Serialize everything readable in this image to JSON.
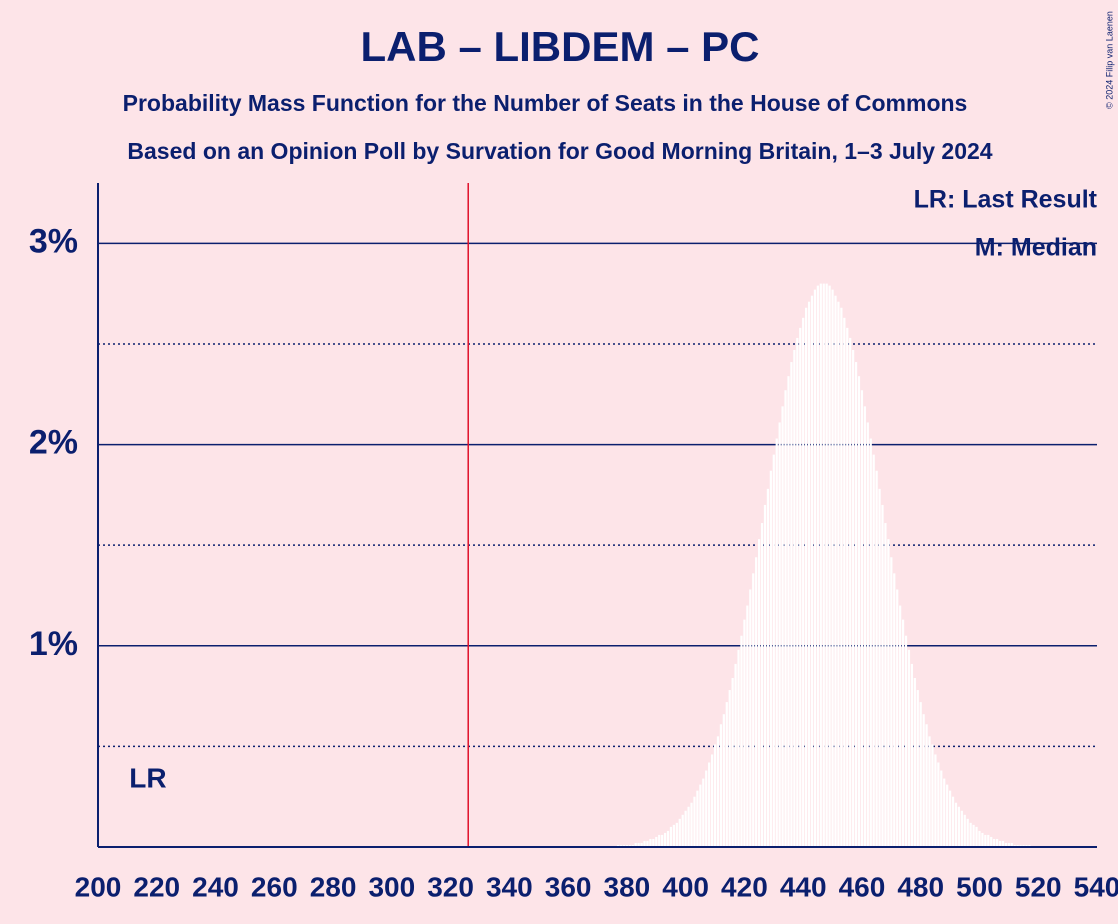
{
  "chart_data": {
    "type": "bar",
    "title": "LAB – LIBDEM – PC",
    "subtitle": "Probability Mass Function for the Number of Seats in the House of Commons",
    "subtitle2": "Based on an Opinion Poll by Survation for Good Morning Britain, 1–3 July 2024",
    "copyright": "© 2024 Filip van Laenen",
    "legend": [
      "LR: Last Result",
      "M: Median"
    ],
    "last_result": {
      "label": "LR",
      "value": 217
    },
    "majority_line": 326,
    "color": "#ffffff",
    "xlim": [
      200,
      540
    ],
    "xticks": [
      200,
      220,
      240,
      260,
      280,
      300,
      320,
      340,
      360,
      380,
      400,
      420,
      440,
      460,
      480,
      500,
      520,
      540
    ],
    "ylim": [
      0,
      3.3
    ],
    "yticks": [
      {
        "value": 1,
        "label": "1%"
      },
      {
        "value": 2,
        "label": "2%"
      },
      {
        "value": 3,
        "label": "3%"
      }
    ],
    "minor_grid": [
      0.5,
      1.5,
      2.5
    ],
    "grid": true,
    "x": [
      377,
      378,
      379,
      380,
      381,
      382,
      383,
      384,
      385,
      386,
      387,
      388,
      389,
      390,
      391,
      392,
      393,
      394,
      395,
      396,
      397,
      398,
      399,
      400,
      401,
      402,
      403,
      404,
      405,
      406,
      407,
      408,
      409,
      410,
      411,
      412,
      413,
      414,
      415,
      416,
      417,
      418,
      419,
      420,
      421,
      422,
      423,
      424,
      425,
      426,
      427,
      428,
      429,
      430,
      431,
      432,
      433,
      434,
      435,
      436,
      437,
      438,
      439,
      440,
      441,
      442,
      443,
      444,
      445,
      446,
      447,
      448,
      449,
      450,
      451,
      452,
      453,
      454,
      455,
      456,
      457,
      458,
      459,
      460,
      461,
      462,
      463,
      464,
      465,
      466,
      467,
      468,
      469,
      470,
      471,
      472,
      473,
      474,
      475,
      476,
      477,
      478,
      479,
      480,
      481,
      482,
      483,
      484,
      485,
      486,
      487,
      488,
      489,
      490,
      491,
      492,
      493,
      494,
      495,
      496,
      497,
      498,
      499,
      500,
      501,
      502,
      503,
      504,
      505,
      506,
      507,
      508,
      509,
      510,
      511,
      512,
      513,
      514,
      515,
      516,
      517
    ],
    "values": [
      0.01,
      0.01,
      0.01,
      0.01,
      0.01,
      0.01,
      0.02,
      0.02,
      0.02,
      0.03,
      0.03,
      0.04,
      0.04,
      0.05,
      0.06,
      0.06,
      0.07,
      0.08,
      0.1,
      0.11,
      0.12,
      0.14,
      0.16,
      0.18,
      0.2,
      0.22,
      0.25,
      0.28,
      0.31,
      0.34,
      0.38,
      0.42,
      0.46,
      0.51,
      0.55,
      0.61,
      0.66,
      0.72,
      0.78,
      0.84,
      0.91,
      0.98,
      1.05,
      1.13,
      1.2,
      1.28,
      1.36,
      1.44,
      1.53,
      1.61,
      1.7,
      1.78,
      1.87,
      1.95,
      2.03,
      2.11,
      2.19,
      2.27,
      2.34,
      2.41,
      2.47,
      2.53,
      2.58,
      2.63,
      2.68,
      2.71,
      2.74,
      2.77,
      2.79,
      2.8,
      2.8,
      2.8,
      2.79,
      2.77,
      2.74,
      2.71,
      2.68,
      2.63,
      2.58,
      2.53,
      2.47,
      2.41,
      2.34,
      2.27,
      2.19,
      2.11,
      2.03,
      1.95,
      1.87,
      1.78,
      1.7,
      1.61,
      1.53,
      1.44,
      1.36,
      1.28,
      1.2,
      1.13,
      1.05,
      0.98,
      0.91,
      0.84,
      0.78,
      0.72,
      0.66,
      0.61,
      0.55,
      0.51,
      0.46,
      0.42,
      0.38,
      0.34,
      0.31,
      0.28,
      0.25,
      0.22,
      0.2,
      0.18,
      0.16,
      0.14,
      0.12,
      0.11,
      0.1,
      0.08,
      0.07,
      0.06,
      0.06,
      0.05,
      0.04,
      0.04,
      0.03,
      0.03,
      0.02,
      0.02,
      0.02,
      0.01,
      0.01,
      0.01,
      0.01,
      0.01,
      0.01
    ]
  }
}
